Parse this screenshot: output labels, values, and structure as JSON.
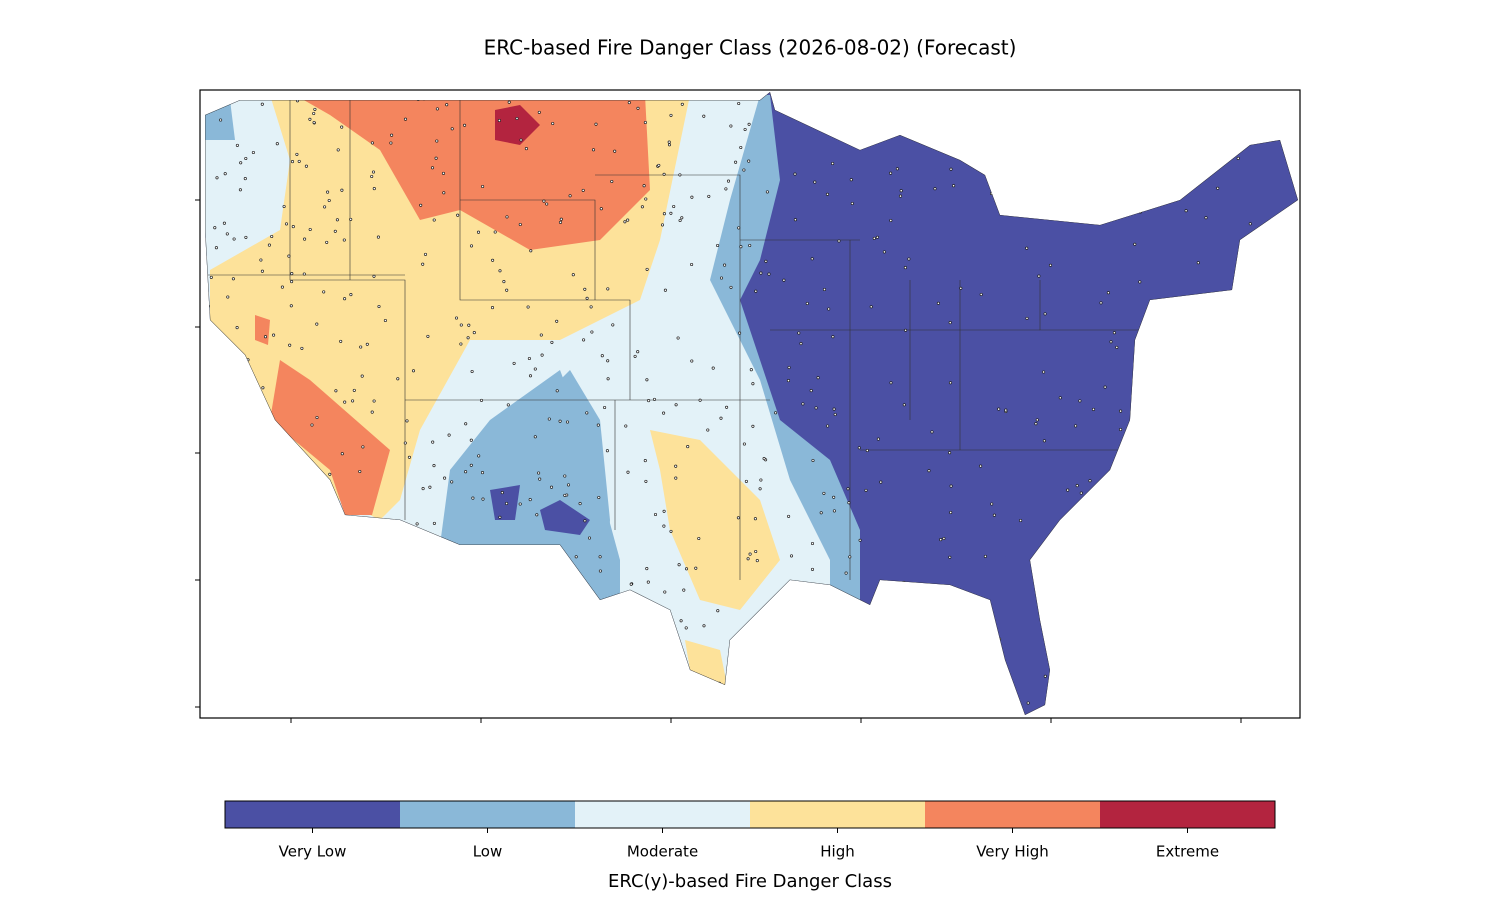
{
  "chart_data": {
    "type": "map",
    "title": "ERC-based Fire Danger Class (2026-08-02) (Forecast)",
    "colorbar": {
      "label": "ERC(y)-based Fire Danger Class",
      "categories": [
        "Very Low",
        "Low",
        "Moderate",
        "High",
        "Very High",
        "Extreme"
      ],
      "colors": [
        "#4b50a4",
        "#8ab8d8",
        "#e3f2f8",
        "#fde29a",
        "#f4855e",
        "#b3243f"
      ]
    }
  }
}
